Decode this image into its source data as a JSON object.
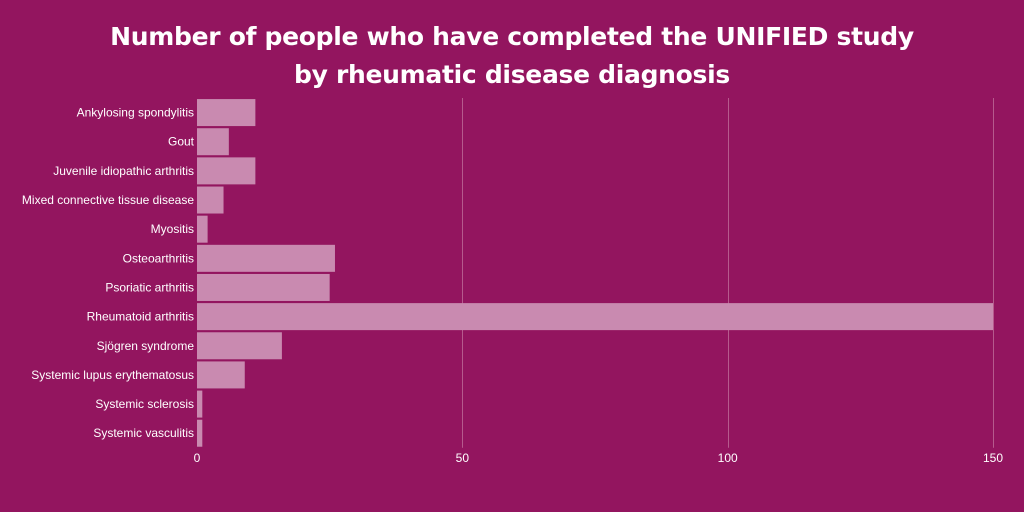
{
  "colors": {
    "background": "#93155f",
    "bar": "#c98ab0",
    "grid": "#b65a8d",
    "text": "#ffffff"
  },
  "chart_data": {
    "type": "bar",
    "orientation": "horizontal",
    "title_lines": [
      "Number of people who have completed the UNIFIED study",
      "by rheumatic disease diagnosis"
    ],
    "categories": [
      "Ankylosing spondylitis",
      "Gout",
      "Juvenile idiopathic arthritis",
      "Mixed connective tissue disease",
      "Myositis",
      "Osteoarthritis",
      "Psoriatic arthritis",
      "Rheumatoid arthritis",
      "Sjögren syndrome",
      "Systemic lupus erythematosus",
      "Systemic sclerosis",
      "Systemic vasculitis"
    ],
    "values": [
      11,
      6,
      11,
      5,
      2,
      26,
      25,
      150,
      16,
      9,
      1,
      1
    ],
    "xlim": [
      0,
      150
    ],
    "xticks": [
      0,
      50,
      100,
      150
    ],
    "grid": true,
    "legend": "none"
  }
}
